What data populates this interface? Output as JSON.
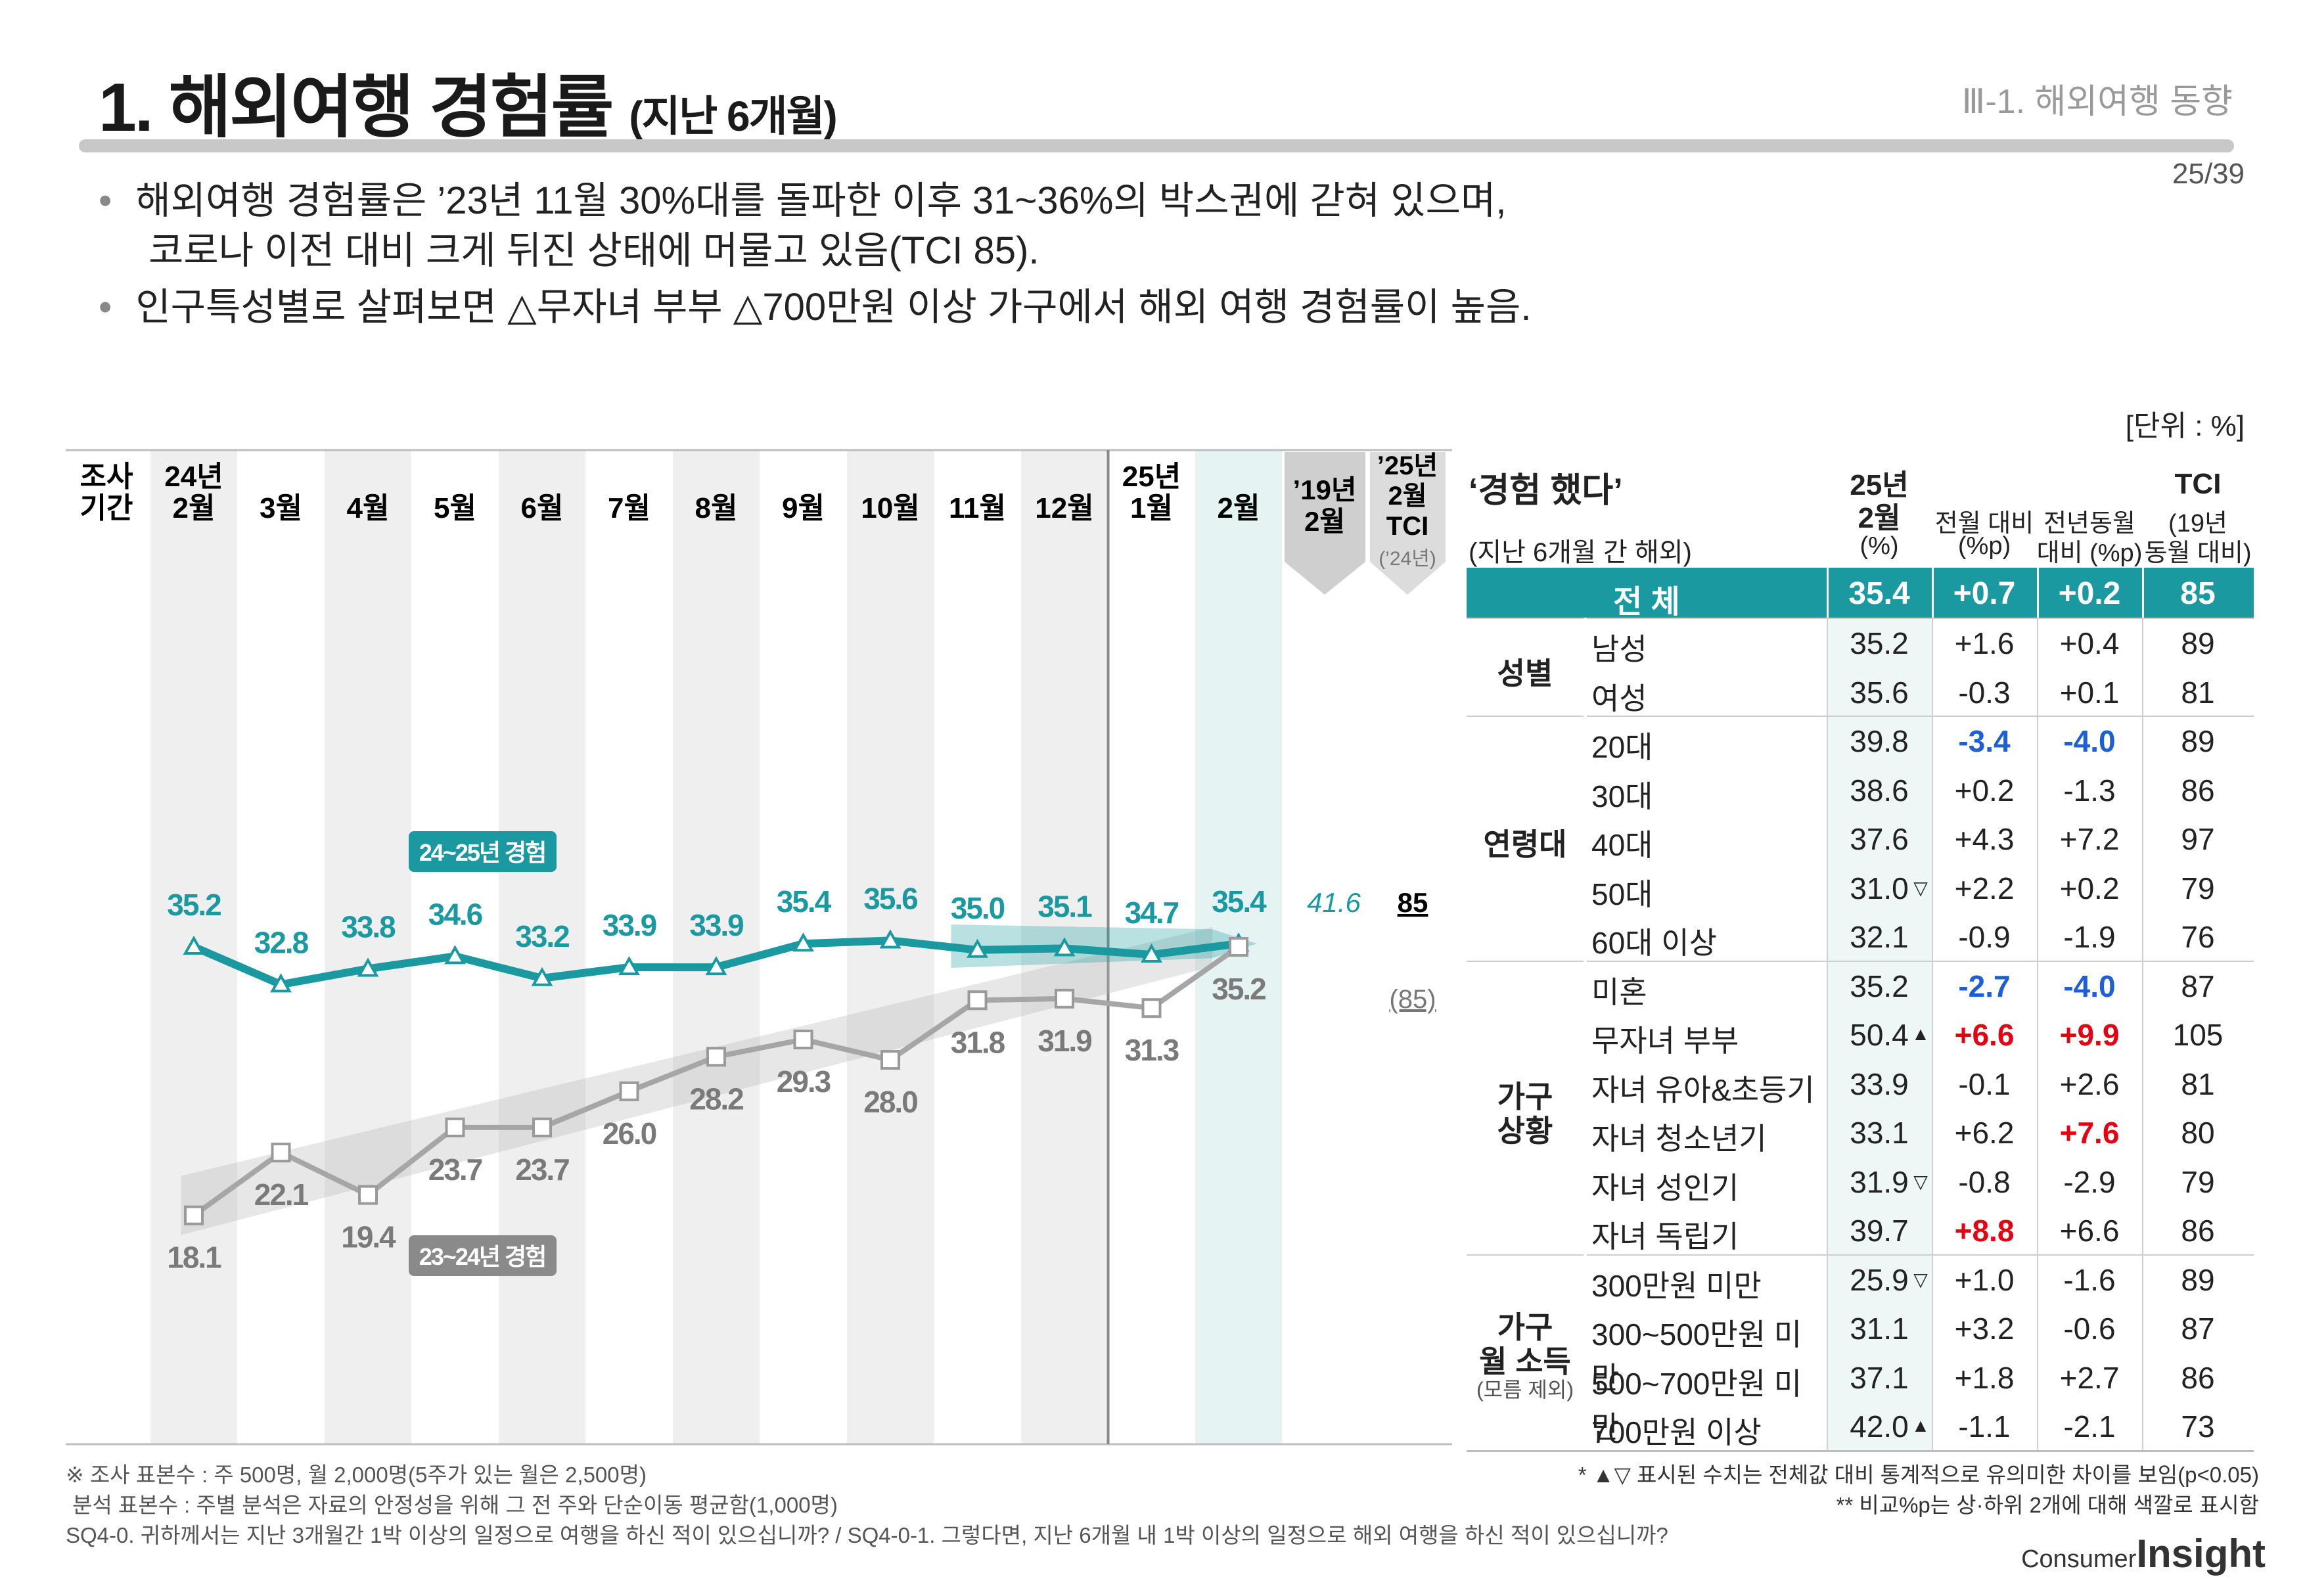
{
  "header": {
    "title": "1. 해외여행 경험률",
    "title_sub": "(지난 6개월)",
    "section": "Ⅲ-1. 해외여행 동향",
    "page": "25/39"
  },
  "bullets": [
    "해외여행 경험률은 ’23년 11월 30%대를 돌파한 이후 31~36%의 박스권에 갇혀 있으며,",
    "코로나 이전 대비 크게 뒤진 상태에 머물고 있음(TCI 85).",
    "인구특성별로 살펴보면 △무자녀 부부 △700만원 이상 가구에서 해외 여행 경험률이 높음."
  ],
  "unit": "[단위 : %]",
  "chart_data": {
    "type": "line",
    "period_label": [
      "조사",
      "기간"
    ],
    "categories": [
      [
        "24년",
        "2월"
      ],
      [
        "3월"
      ],
      [
        "4월"
      ],
      [
        "5월"
      ],
      [
        "6월"
      ],
      [
        "7월"
      ],
      [
        "8월"
      ],
      [
        "9월"
      ],
      [
        "10월"
      ],
      [
        "11월"
      ],
      [
        "12월"
      ],
      [
        "25년",
        "1월"
      ],
      [
        "2월"
      ]
    ],
    "series": [
      {
        "name": "24~25년 경험",
        "color": "#1a9aa0",
        "values": [
          35.2,
          32.8,
          33.8,
          34.6,
          33.2,
          33.9,
          33.9,
          35.4,
          35.6,
          35.0,
          35.1,
          34.7,
          35.4
        ],
        "labels": [
          "35.2",
          "32.8",
          "33.8",
          "34.6",
          "33.2",
          "33.9",
          "33.9",
          "35.4",
          "35.6",
          "35.0",
          "35.1",
          "34.7",
          "35.4"
        ]
      },
      {
        "name": "23~24년 경험",
        "color": "#a6a6a6",
        "values": [
          18.1,
          22.1,
          19.4,
          23.7,
          23.7,
          26.0,
          28.2,
          29.3,
          28.0,
          31.8,
          31.9,
          31.3,
          35.2
        ],
        "labels": [
          "18.1",
          "22.1",
          "19.4",
          "23.7",
          "23.7",
          "26.0",
          "28.2",
          "29.3",
          "28.0",
          "31.8",
          "31.9",
          "31.3",
          "35.2"
        ]
      }
    ],
    "ref_2019": {
      "header": [
        "’19년",
        "2월"
      ],
      "value": "41.6"
    },
    "tci": {
      "header": [
        "’25년",
        "2월",
        "TCI"
      ],
      "sub": "(’24년)",
      "value": "85",
      "prev": "(85)"
    }
  },
  "table": {
    "title": "‘경험 했다’",
    "subtitle": "(지난 6개월 간 해외)",
    "col_pct": [
      "25년",
      "2월",
      "(%)"
    ],
    "col_mom": [
      "전월 대비",
      "(%p)"
    ],
    "col_yoy": [
      "전년동월",
      "대비 (%p)"
    ],
    "col_tci": [
      "TCI",
      "(19년",
      "동월 대비)"
    ],
    "total": {
      "label": "전 체",
      "pct": "35.4",
      "mom": "+0.7",
      "yoy": "+0.2",
      "tci": "85"
    },
    "groups": [
      {
        "name": [
          "성별"
        ],
        "rows": [
          {
            "label": "남성",
            "pct": "35.2",
            "mom": "+1.6",
            "yoy": "+0.4",
            "tci": "89"
          },
          {
            "label": "여성",
            "pct": "35.6",
            "mom": "-0.3",
            "yoy": "+0.1",
            "tci": "81"
          }
        ]
      },
      {
        "name": [
          "연령대"
        ],
        "rows": [
          {
            "label": "20대",
            "pct": "39.8",
            "mom": "-3.4",
            "yoy": "-4.0",
            "tci": "89",
            "mom_c": "blue",
            "yoy_c": "blue"
          },
          {
            "label": "30대",
            "pct": "38.6",
            "mom": "+0.2",
            "yoy": "-1.3",
            "tci": "86"
          },
          {
            "label": "40대",
            "pct": "37.6",
            "mom": "+4.3",
            "yoy": "+7.2",
            "tci": "97"
          },
          {
            "label": "50대",
            "pct": "31.0",
            "sig": "▽",
            "mom": "+2.2",
            "yoy": "+0.2",
            "tci": "79"
          },
          {
            "label": "60대 이상",
            "pct": "32.1",
            "mom": "-0.9",
            "yoy": "-1.9",
            "tci": "76"
          }
        ]
      },
      {
        "name": [
          "가구",
          "상황"
        ],
        "rows": [
          {
            "label": "미혼",
            "pct": "35.2",
            "mom": "-2.7",
            "yoy": "-4.0",
            "tci": "87",
            "mom_c": "blue",
            "yoy_c": "blue"
          },
          {
            "label": "무자녀 부부",
            "pct": "50.4",
            "sig": "▲",
            "mom": "+6.6",
            "yoy": "+9.9",
            "tci": "105",
            "mom_c": "red",
            "yoy_c": "red"
          },
          {
            "label": "자녀 유아&초등기",
            "pct": "33.9",
            "mom": "-0.1",
            "yoy": "+2.6",
            "tci": "81"
          },
          {
            "label": "자녀 청소년기",
            "pct": "33.1",
            "mom": "+6.2",
            "yoy": "+7.6",
            "tci": "80",
            "yoy_c": "red"
          },
          {
            "label": "자녀 성인기",
            "pct": "31.9",
            "sig": "▽",
            "mom": "-0.8",
            "yoy": "-2.9",
            "tci": "79"
          },
          {
            "label": "자녀 독립기",
            "pct": "39.7",
            "mom": "+8.8",
            "yoy": "+6.6",
            "tci": "86",
            "mom_c": "red"
          }
        ]
      },
      {
        "name": [
          "가구",
          "월 소득"
        ],
        "note": "(모름 제외)",
        "rows": [
          {
            "label": "300만원 미만",
            "pct": "25.9",
            "sig": "▽",
            "mom": "+1.0",
            "yoy": "-1.6",
            "tci": "89"
          },
          {
            "label": "300~500만원 미만",
            "pct": "31.1",
            "mom": "+3.2",
            "yoy": "-0.6",
            "tci": "87"
          },
          {
            "label": "500~700만원 미만",
            "pct": "37.1",
            "mom": "+1.8",
            "yoy": "+2.7",
            "tci": "86"
          },
          {
            "label": "700만원 이상",
            "pct": "42.0",
            "sig": "▲",
            "mom": "-1.1",
            "yoy": "-2.1",
            "tci": "73"
          }
        ]
      }
    ]
  },
  "footer": {
    "left": [
      "※ 조사 표본수 : 주 500명, 월 2,000명(5주가 있는 월은 2,500명)",
      "분석 표본수 : 주별 분석은 자료의 안정성을 위해 그 전 주와 단순이동 평균함(1,000명)",
      "SQ4-0. 귀하께서는 지난 3개월간 1박 이상의 일정으로 여행을 하신 적이 있으십니까? / SQ4-0-1. 그렇다면, 지난 6개월 내 1박 이상의 일정으로 해외 여행을 하신 적이 있으십니까?"
    ],
    "right": [
      "* ▲▽ 표시된 수치는 전체값 대비 통계적으로 유의미한 차이를 보임(p<0.05)",
      "** 비교%p는 상·하위 2개에 대해 색깔로 표시함"
    ],
    "logo_small": "Consumer",
    "logo_big": "Insight"
  },
  "colors": {
    "teal": "#1a9aa0",
    "gray": "#a6a6a6",
    "red": "#e60012",
    "blue": "#1f5fd6"
  }
}
